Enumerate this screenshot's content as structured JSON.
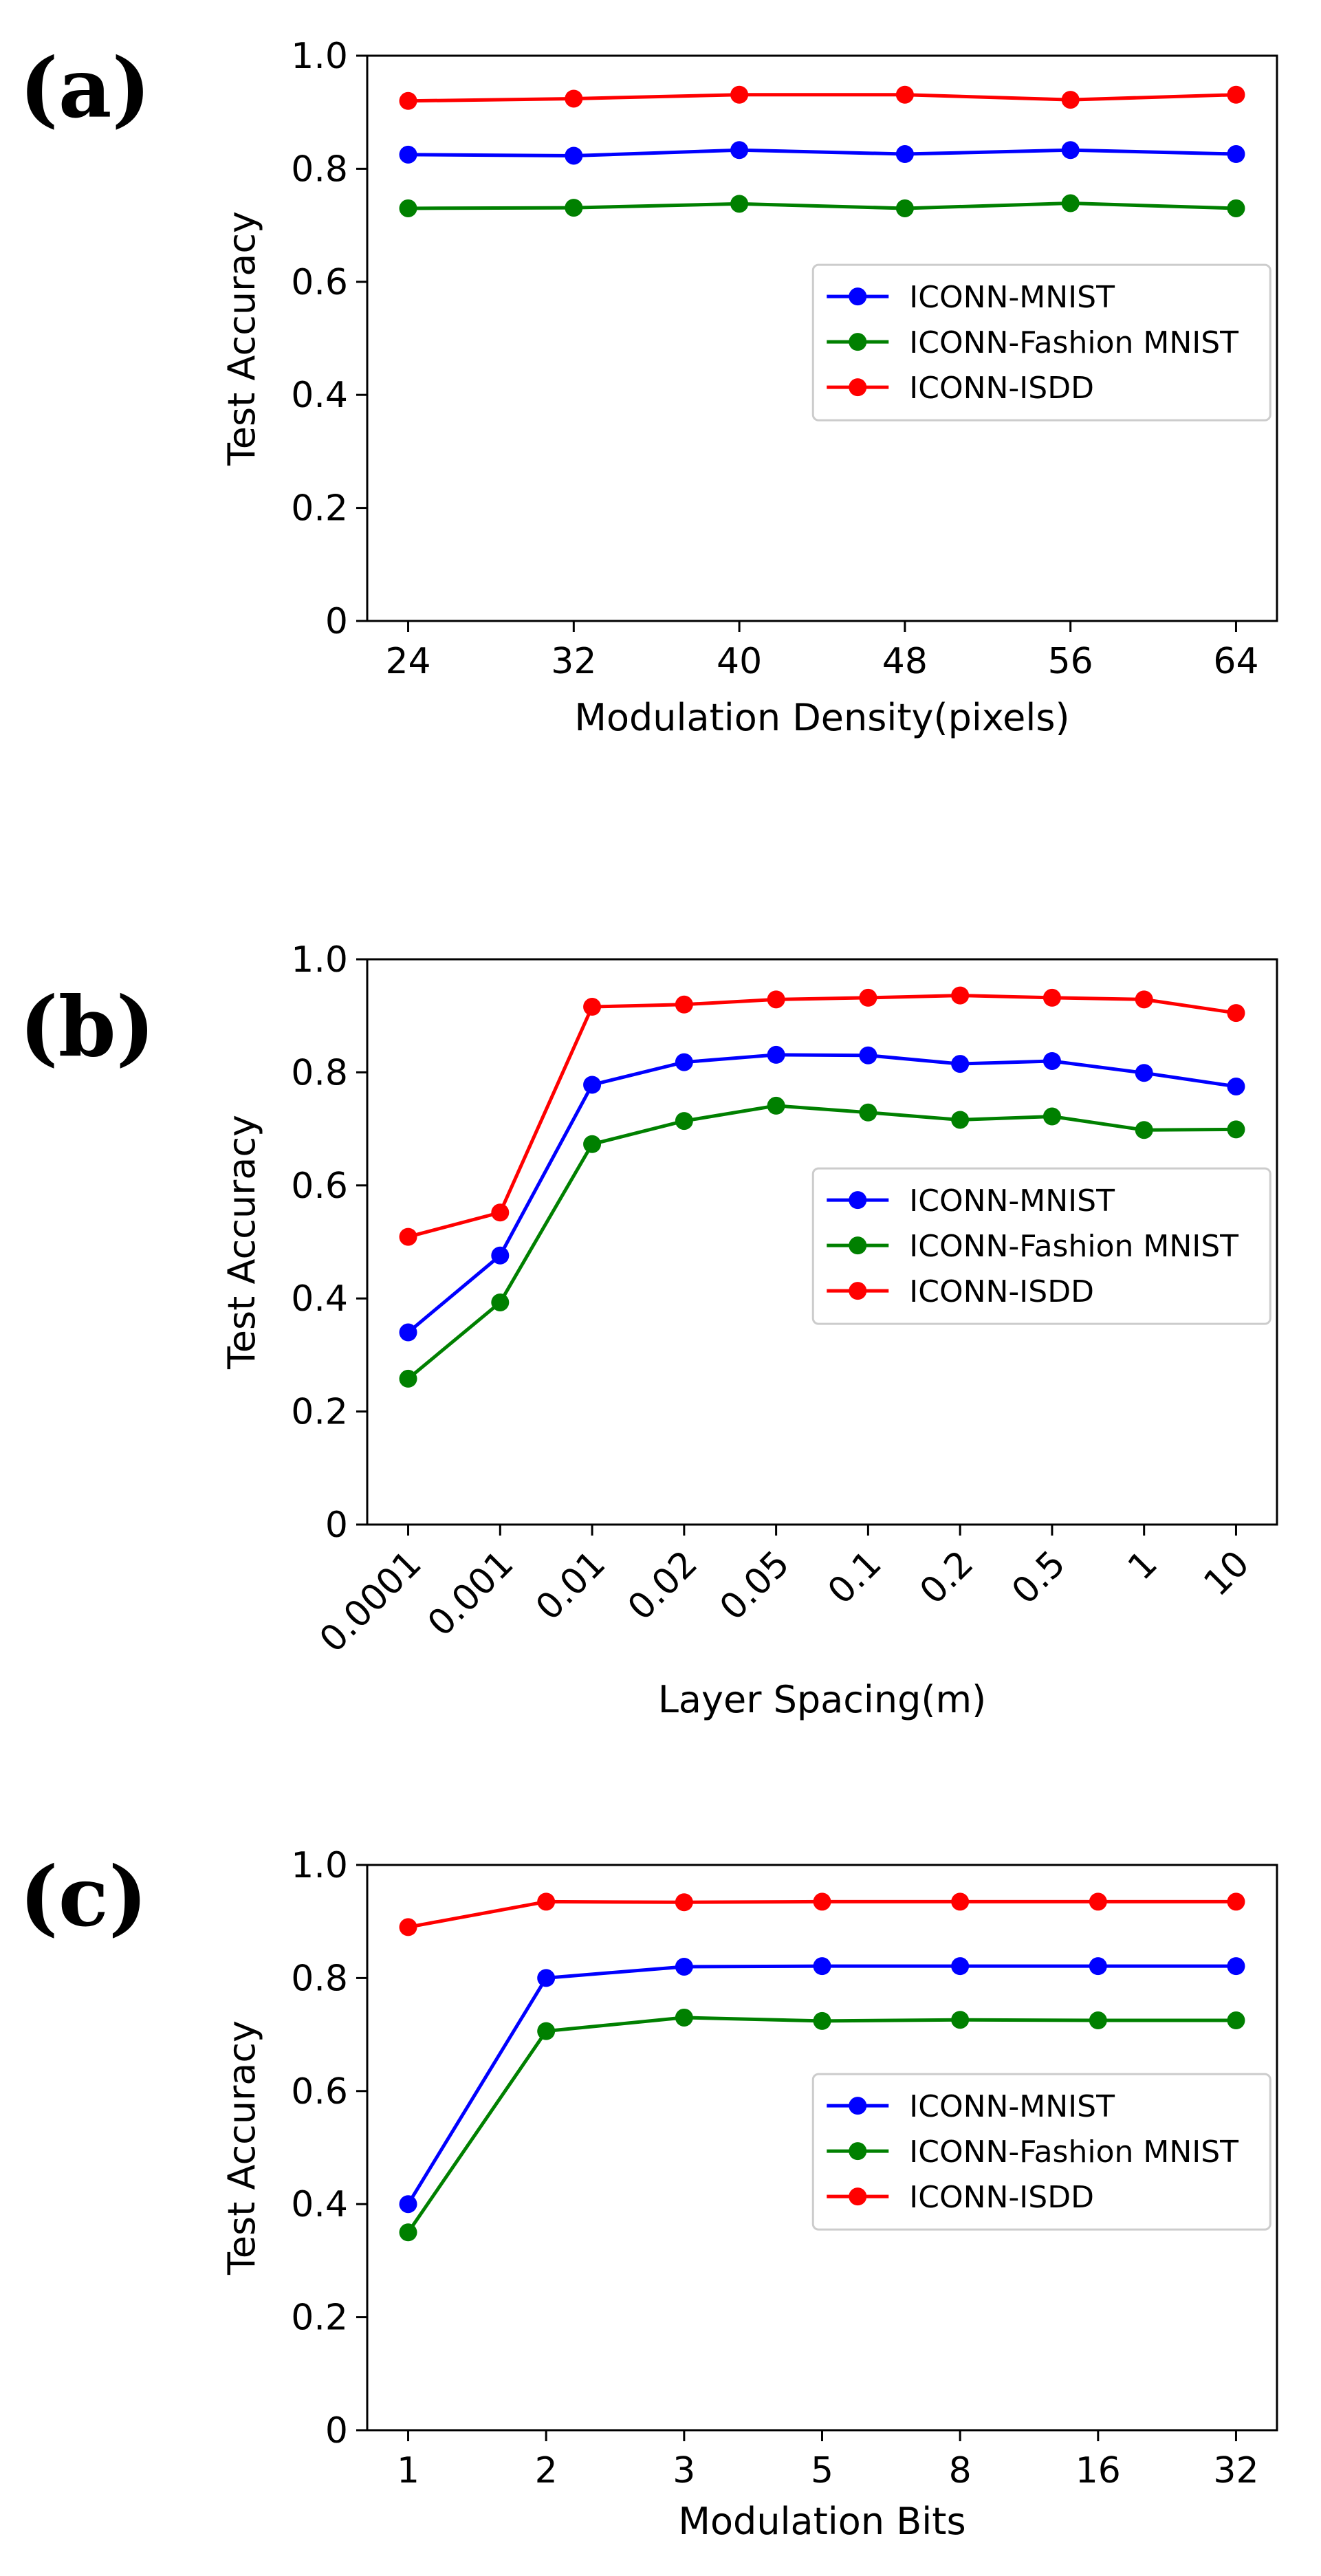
{
  "chart_data": [
    {
      "panel_label": "(a)",
      "type": "line",
      "xlabel": "Modulation Density(pixels)",
      "ylabel": "Test Accuracy",
      "categories": [
        "24",
        "32",
        "40",
        "48",
        "56",
        "64"
      ],
      "x_tick_rotation": 0,
      "ylim": [
        0,
        1.0
      ],
      "yticks": [
        "0",
        "0.2",
        "0.4",
        "0.6",
        "0.8",
        "1.0"
      ],
      "legend_position": "center-right",
      "series": [
        {
          "name": "ICONN-MNIST",
          "color": "#0000ff",
          "values": [
            0.825,
            0.823,
            0.833,
            0.826,
            0.833,
            0.826
          ]
        },
        {
          "name": "ICONN-Fashion MNIST",
          "color": "#008000",
          "values": [
            0.73,
            0.731,
            0.738,
            0.73,
            0.739,
            0.73
          ]
        },
        {
          "name": "ICONN-ISDD",
          "color": "#ff0000",
          "values": [
            0.92,
            0.924,
            0.931,
            0.931,
            0.922,
            0.931
          ]
        }
      ]
    },
    {
      "panel_label": "(b)",
      "type": "line",
      "xlabel": "Layer Spacing(m)",
      "ylabel": "Test Accuracy",
      "categories": [
        "0.0001",
        "0.001",
        "0.01",
        "0.02",
        "0.05",
        "0.1",
        "0.2",
        "0.5",
        "1",
        "10"
      ],
      "x_tick_rotation": -45,
      "ylim": [
        0,
        1.0
      ],
      "yticks": [
        "0",
        "0.2",
        "0.4",
        "0.6",
        "0.8",
        "1.0"
      ],
      "legend_position": "center-right",
      "series": [
        {
          "name": "ICONN-MNIST",
          "color": "#0000ff",
          "values": [
            0.34,
            0.476,
            0.778,
            0.818,
            0.831,
            0.83,
            0.815,
            0.82,
            0.799,
            0.775
          ]
        },
        {
          "name": "ICONN-Fashion MNIST",
          "color": "#008000",
          "values": [
            0.258,
            0.393,
            0.673,
            0.714,
            0.741,
            0.729,
            0.716,
            0.722,
            0.698,
            0.699
          ]
        },
        {
          "name": "ICONN-ISDD",
          "color": "#ff0000",
          "values": [
            0.509,
            0.552,
            0.916,
            0.92,
            0.929,
            0.932,
            0.936,
            0.932,
            0.929,
            0.905
          ]
        }
      ]
    },
    {
      "panel_label": "(c)",
      "type": "line",
      "xlabel": "Modulation Bits",
      "ylabel": "Test Accuracy",
      "categories": [
        "1",
        "2",
        "3",
        "5",
        "8",
        "16",
        "32"
      ],
      "x_tick_rotation": 0,
      "ylim": [
        0,
        1.0
      ],
      "yticks": [
        "0",
        "0.2",
        "0.4",
        "0.6",
        "0.8",
        "1.0"
      ],
      "legend_position": "center-right",
      "series": [
        {
          "name": "ICONN-MNIST",
          "color": "#0000ff",
          "values": [
            0.4,
            0.8,
            0.82,
            0.821,
            0.821,
            0.821,
            0.821
          ]
        },
        {
          "name": "ICONN-Fashion MNIST",
          "color": "#008000",
          "values": [
            0.35,
            0.706,
            0.73,
            0.724,
            0.726,
            0.725,
            0.725
          ]
        },
        {
          "name": "ICONN-ISDD",
          "color": "#ff0000",
          "values": [
            0.89,
            0.935,
            0.934,
            0.935,
            0.935,
            0.935,
            0.935
          ]
        }
      ]
    }
  ]
}
